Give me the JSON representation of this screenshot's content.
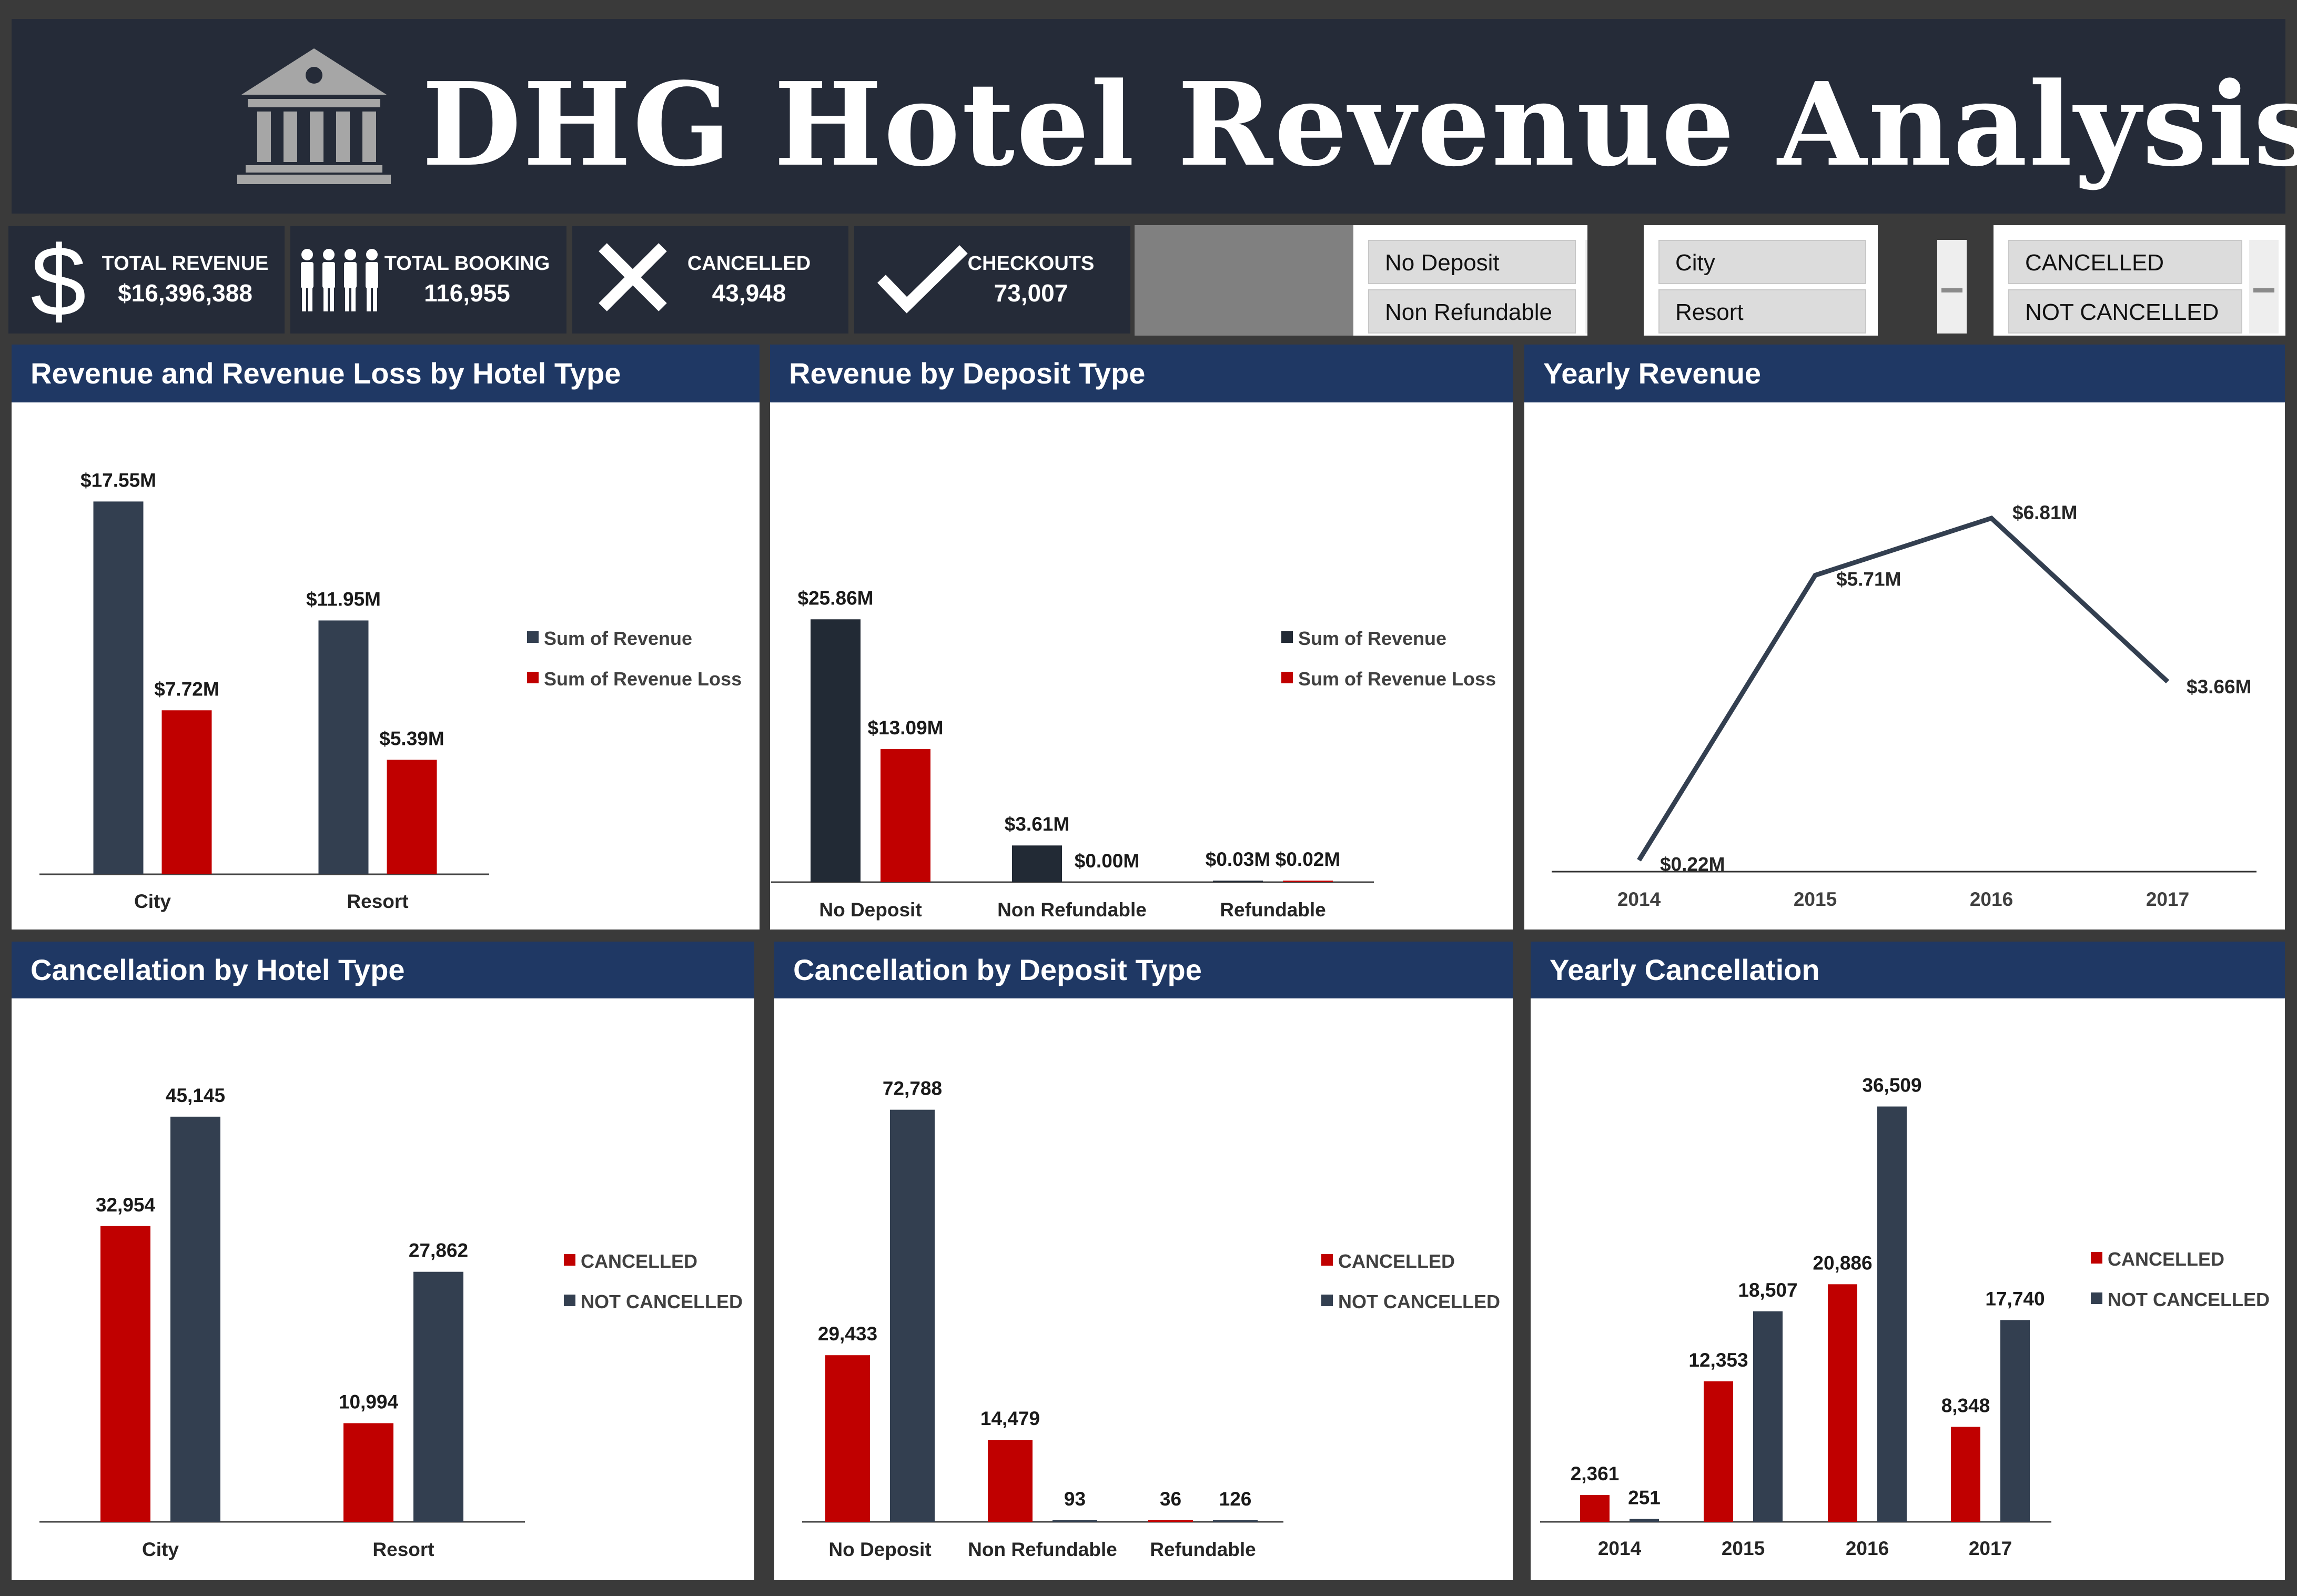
{
  "header": {
    "title": "DHG Hotel Revenue Analysis",
    "logo_icon": "bank-icon"
  },
  "kpis": [
    {
      "label": "TOTAL REVENUE",
      "value": "$16,396,388",
      "icon": "dollar-icon"
    },
    {
      "label": "TOTAL BOOKING",
      "value": "116,955",
      "icon": "people-icon"
    },
    {
      "label": "CANCELLED",
      "value": "43,948",
      "icon": "x-icon"
    },
    {
      "label": "CHECKOUTS",
      "value": "73,007",
      "icon": "check-icon"
    }
  ],
  "slicers": [
    {
      "items": [
        "No Deposit",
        "Non Refundable"
      ]
    },
    {
      "items": [
        "City",
        "Resort"
      ]
    },
    {
      "items": [
        "CANCELLED",
        "NOT CANCELLED"
      ]
    }
  ],
  "colors": {
    "navy": "#333f50",
    "red": "#c00000",
    "title_bg": "#1f3864",
    "dark": "#222a35"
  },
  "chart_data": [
    {
      "id": "rev-hotel",
      "type": "bar",
      "title": "Revenue and Revenue Loss by Hotel Type",
      "categories": [
        "City",
        "Resort"
      ],
      "series": [
        {
          "name": "Sum of Revenue",
          "values": [
            17.55,
            11.95
          ],
          "labels": [
            "$17.55M",
            "$11.95M"
          ],
          "color": "#333f50"
        },
        {
          "name": "Sum of Revenue Loss",
          "values": [
            7.72,
            5.39
          ],
          "labels": [
            "$7.72M",
            "$5.39M"
          ],
          "color": "#c00000"
        }
      ],
      "ylim": [
        0,
        18.5
      ],
      "legend": "right"
    },
    {
      "id": "rev-deposit",
      "type": "bar",
      "title": "Revenue by Deposit Type",
      "categories": [
        "No Deposit",
        "Non Refundable",
        "Refundable"
      ],
      "series": [
        {
          "name": "Sum of Revenue",
          "values": [
            25.86,
            3.61,
            0.03
          ],
          "labels": [
            "$25.86M",
            "$3.61M",
            "$0.03M"
          ],
          "color": "#222a35"
        },
        {
          "name": "Sum of Revenue Loss",
          "values": [
            13.09,
            0.0,
            0.02
          ],
          "labels": [
            "$13.09M",
            "$0.00M",
            "$0.02M"
          ],
          "color": "#c00000"
        }
      ],
      "ylim": [
        0,
        34
      ],
      "legend": "right"
    },
    {
      "id": "yearly-rev",
      "type": "line",
      "title": "Yearly Revenue",
      "categories": [
        "2014",
        "2015",
        "2016",
        "2017"
      ],
      "series": [
        {
          "name": "Revenue",
          "values": [
            0.22,
            5.71,
            6.81,
            3.66
          ],
          "labels": [
            "$0.22M",
            "$5.71M",
            "$6.81M",
            "$3.66M"
          ],
          "color": "#333f50"
        }
      ],
      "ylim": [
        0,
        9.8
      ],
      "legend": "none"
    },
    {
      "id": "cancel-hotel",
      "type": "bar",
      "title": "Cancellation by Hotel Type",
      "categories": [
        "City",
        "Resort"
      ],
      "series": [
        {
          "name": "CANCELLED",
          "values": [
            32954,
            10994
          ],
          "labels": [
            "32,954",
            "10,994"
          ],
          "color": "#c00000"
        },
        {
          "name": "NOT CANCELLED",
          "values": [
            45145,
            27862
          ],
          "labels": [
            "45,145",
            "27,862"
          ],
          "color": "#333f50"
        }
      ],
      "ylim": [
        0,
        50000
      ],
      "legend": "right"
    },
    {
      "id": "cancel-deposit",
      "type": "bar",
      "title": "Cancellation by Deposit Type",
      "categories": [
        "No Deposit",
        "Non Refundable",
        "Refundable"
      ],
      "series": [
        {
          "name": "CANCELLED",
          "values": [
            29433,
            14479,
            36
          ],
          "labels": [
            "29,433",
            "14,479",
            "36"
          ],
          "color": "#c00000"
        },
        {
          "name": "NOT CANCELLED",
          "values": [
            72788,
            93,
            126
          ],
          "labels": [
            "72,788",
            "93",
            "126"
          ],
          "color": "#333f50"
        }
      ],
      "ylim": [
        0,
        80000
      ],
      "legend": "right"
    },
    {
      "id": "yearly-cancel",
      "type": "bar",
      "title": "Yearly Cancellation",
      "categories": [
        "2014",
        "2015",
        "2016",
        "2017"
      ],
      "series": [
        {
          "name": "CANCELLED",
          "values": [
            2361,
            12353,
            20886,
            8348
          ],
          "labels": [
            "2,361",
            "12,353",
            "20,886",
            "8,348"
          ],
          "color": "#c00000"
        },
        {
          "name": "NOT CANCELLED",
          "values": [
            251,
            18507,
            36509,
            17740
          ],
          "labels": [
            "251",
            "18,507",
            "36,509",
            "17,740"
          ],
          "color": "#333f50"
        }
      ],
      "ylim": [
        0,
        40000
      ],
      "legend": "right"
    }
  ]
}
